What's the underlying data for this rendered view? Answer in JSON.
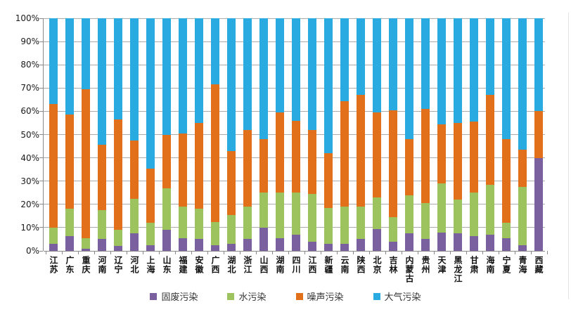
{
  "chart_data": {
    "type": "bar",
    "subtype": "stacked-100-percent-column",
    "title": "",
    "xlabel": "",
    "ylabel": "",
    "ylim": [
      0,
      100
    ],
    "y_ticks": [
      "0%",
      "10%",
      "20%",
      "30%",
      "40%",
      "50%",
      "60%",
      "70%",
      "80%",
      "90%",
      "100%"
    ],
    "grid": true,
    "legend_position": "bottom",
    "categories": [
      "江苏",
      "广东",
      "重庆",
      "河南",
      "辽宁",
      "河北",
      "上海",
      "山东",
      "福建",
      "安徽",
      "广西",
      "湖北",
      "浙江",
      "山西",
      "湖南",
      "四川",
      "江西",
      "新疆",
      "云南",
      "陕西",
      "北京",
      "吉林",
      "内蒙古",
      "贵州",
      "天津",
      "黑龙江",
      "甘肃",
      "海南",
      "宁夏",
      "青海",
      "西藏"
    ],
    "series": [
      {
        "name": "固废污染",
        "color": "#7B609F",
        "values": [
          3,
          6.5,
          1,
          5,
          2,
          7.5,
          2.5,
          9,
          5.5,
          5,
          2.5,
          3,
          5,
          10,
          5.5,
          7,
          4,
          3,
          3,
          5,
          9.5,
          4,
          7.5,
          5,
          8,
          7.5,
          6.5,
          7,
          5.5,
          2.5,
          40
        ]
      },
      {
        "name": "水污染",
        "color": "#9DC35E",
        "values": [
          7,
          11.5,
          4.5,
          12.5,
          7,
          15,
          9.5,
          18,
          13.5,
          13,
          10,
          12.5,
          14,
          15,
          19.5,
          18,
          20.5,
          15.5,
          16,
          14,
          13.5,
          10.5,
          16.5,
          15.5,
          21,
          14.5,
          18.5,
          21.5,
          6.5,
          25,
          0
        ]
      },
      {
        "name": "噪声污染",
        "color": "#E2701B",
        "values": [
          53,
          40.5,
          64,
          28,
          47.5,
          25,
          23.5,
          23,
          31.5,
          37,
          59,
          27.5,
          33,
          23,
          34.5,
          31,
          27.5,
          23.5,
          45.5,
          48,
          36.5,
          46,
          24,
          40.5,
          25.5,
          33,
          30.5,
          38.5,
          36,
          16,
          20
        ]
      },
      {
        "name": "大气污染",
        "color": "#29ABE2",
        "values": [
          37,
          41.5,
          30.5,
          54.5,
          43.5,
          52.5,
          64.5,
          50,
          49.5,
          45,
          28.5,
          57,
          48,
          52,
          40.5,
          44,
          48,
          58,
          35.5,
          33,
          40.5,
          39.5,
          52,
          39,
          45.5,
          45,
          44.5,
          33,
          52,
          56.5,
          40
        ]
      }
    ],
    "colors": {
      "gridline": "#ABABAB",
      "axis": "#8A8A8A",
      "tick_text": "#1A1A1A"
    }
  }
}
